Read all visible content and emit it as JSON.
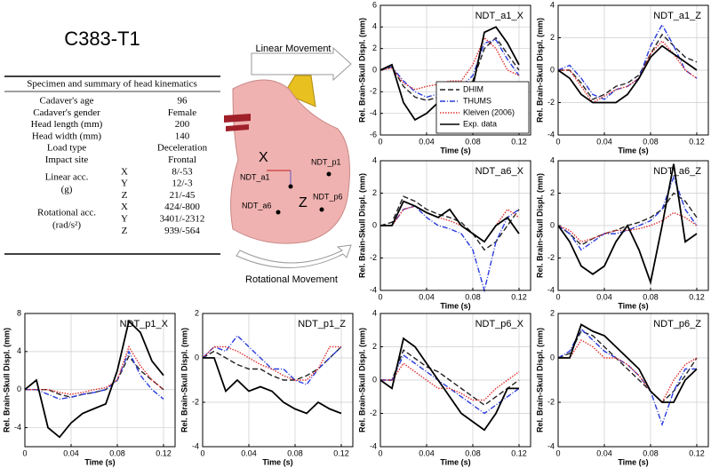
{
  "header": {
    "title": "C383-T1"
  },
  "table": {
    "title": "Specimen and summary of head kinematics",
    "rows": [
      {
        "label": "Cadaver's age",
        "value": "96"
      },
      {
        "label": "Cadaver's gender",
        "value": "Female"
      },
      {
        "label": "Head length (mm)",
        "value": "200"
      },
      {
        "label": "Head width (mm)",
        "value": "140"
      },
      {
        "label": "Load type",
        "value": "Deceleration"
      },
      {
        "label": "Impact site",
        "value": "Frontal"
      }
    ],
    "groups": [
      {
        "label": "Linear acc.",
        "unit": "(g)",
        "axes": [
          {
            "axis": "X",
            "value": "8/-53"
          },
          {
            "axis": "Y",
            "value": "12/-3"
          },
          {
            "axis": "Z",
            "value": "21/-45"
          }
        ]
      },
      {
        "label": "Rotational acc.",
        "unit": "(rad/s²)",
        "axes": [
          {
            "axis": "X",
            "value": "424/-800"
          },
          {
            "axis": "Y",
            "value": "3401/-2312"
          },
          {
            "axis": "Z",
            "value": "939/-564"
          }
        ]
      }
    ]
  },
  "diagram": {
    "linear": "Linear Movement",
    "rotational": "Rotational Movement",
    "axis_x": "X",
    "axis_z": "Z",
    "points": [
      "NDT_a1",
      "NDT_a6",
      "NDT_p1",
      "NDT_p6"
    ]
  },
  "chart_data": [
    {
      "type": "line",
      "title": "NDT_a1_X",
      "xlabel": "Time (s)",
      "ylabel": "Rel. Brain-Skull Displ. (mm)",
      "grid": true,
      "legend": "lower right",
      "x": [
        0,
        0.01,
        0.02,
        0.03,
        0.04,
        0.05,
        0.06,
        0.07,
        0.08,
        0.09,
        0.1,
        0.11,
        0.12
      ],
      "xlim": [
        0,
        0.13
      ],
      "xticks": [
        0,
        0.04,
        0.08,
        0.12
      ],
      "ylim": [
        -6,
        6
      ],
      "yticks": [
        -6,
        -4,
        -2,
        0,
        2,
        4,
        6
      ],
      "series": [
        {
          "name": "DHIM",
          "color": "#222222",
          "dash": "6,3",
          "values": [
            0,
            0.3,
            -1.5,
            -2.5,
            -2.8,
            -2.5,
            -2,
            -1.8,
            -1,
            2,
            3,
            1.5,
            0
          ]
        },
        {
          "name": "THUMS",
          "color": "#2a3cdd",
          "dash": "6,2,1,2",
          "values": [
            0,
            0.3,
            -1,
            -2,
            -2.5,
            -2.2,
            -1.8,
            -1.5,
            -0.5,
            2.5,
            2.8,
            1,
            -0.5
          ]
        },
        {
          "name": "Kleiven (2006)",
          "color": "#e03030",
          "dash": "1.5,1.5",
          "values": [
            0,
            0.2,
            -1.2,
            -1.8,
            -1.5,
            -1.3,
            -1,
            -1,
            0.5,
            3,
            2,
            0,
            -0.5
          ]
        },
        {
          "name": "Exp. data",
          "color": "#000000",
          "dash": "none",
          "values": [
            0,
            0.5,
            -3,
            -4.6,
            -4,
            -3,
            -2.5,
            -2.2,
            -1.5,
            3.5,
            4,
            2.5,
            0.5
          ]
        }
      ]
    },
    {
      "type": "line",
      "title": "NDT_a1_Z",
      "xlabel": "Time (s)",
      "ylabel": "Rel. Brain-Skull Displ. (mm)",
      "grid": true,
      "x": [
        0,
        0.01,
        0.02,
        0.03,
        0.04,
        0.05,
        0.06,
        0.07,
        0.08,
        0.09,
        0.1,
        0.11,
        0.12
      ],
      "xlim": [
        0,
        0.13
      ],
      "xticks": [
        0,
        0.04,
        0.08,
        0.12
      ],
      "ylim": [
        -4,
        4
      ],
      "yticks": [
        -4,
        -2,
        0,
        2,
        4
      ],
      "series": [
        {
          "color": "#222222",
          "dash": "6,3",
          "values": [
            0,
            0,
            -0.8,
            -1.8,
            -1.5,
            -1,
            -0.8,
            -0.3,
            1,
            2.2,
            1.5,
            0.8,
            0.5
          ]
        },
        {
          "color": "#2a3cdd",
          "dash": "6,2,1,2",
          "values": [
            0,
            0.3,
            -0.5,
            -1.5,
            -1.8,
            -1.2,
            -1,
            -0.5,
            1.5,
            2.8,
            1.5,
            0,
            -0.5
          ]
        },
        {
          "color": "#e03030",
          "dash": "1.5,1.5",
          "values": [
            0,
            0,
            -1,
            -2,
            -1.6,
            -1.2,
            -1,
            -0.5,
            1,
            1.8,
            1,
            0,
            -0.5
          ]
        },
        {
          "color": "#000000",
          "dash": "none",
          "values": [
            0,
            -0.5,
            -1.5,
            -2,
            -2,
            -2,
            -1.5,
            -0.5,
            0.8,
            1.5,
            1,
            0.5,
            0
          ]
        }
      ]
    },
    {
      "type": "line",
      "title": "NDT_a6_X",
      "xlabel": "Time (s)",
      "ylabel": "Rel. Brain-Skull Displ. (mm)",
      "grid": true,
      "x": [
        0,
        0.01,
        0.02,
        0.03,
        0.04,
        0.05,
        0.06,
        0.07,
        0.08,
        0.09,
        0.1,
        0.11,
        0.12
      ],
      "xlim": [
        0,
        0.13
      ],
      "xticks": [
        0,
        0.04,
        0.08,
        0.12
      ],
      "ylim": [
        -4,
        4
      ],
      "yticks": [
        -4,
        -2,
        0,
        2,
        4
      ],
      "series": [
        {
          "color": "#222222",
          "dash": "6,3",
          "values": [
            0,
            0.2,
            1.8,
            1.5,
            1,
            0.7,
            0.5,
            0.2,
            -0.5,
            -1.5,
            -1,
            0,
            1
          ]
        },
        {
          "color": "#2a3cdd",
          "dash": "6,2,1,2",
          "values": [
            0,
            0,
            1,
            1.2,
            0.5,
            0,
            -0.2,
            -0.5,
            -1.5,
            -4,
            -1,
            0.5,
            1
          ]
        },
        {
          "color": "#e03030",
          "dash": "1.5,1.5",
          "values": [
            0,
            0,
            1,
            1.2,
            0.8,
            0.5,
            0.3,
            0,
            -0.5,
            -1,
            0,
            1,
            0.5
          ]
        },
        {
          "color": "#000000",
          "dash": "none",
          "values": [
            0,
            0,
            1.5,
            1.2,
            0.8,
            0.5,
            1,
            0,
            -0.5,
            -1,
            0,
            0.5,
            -0.5
          ]
        }
      ]
    },
    {
      "type": "line",
      "title": "NDT_a6_Z",
      "xlabel": "Time (s)",
      "ylabel": "Rel. Brain-Skull Displ. (mm)",
      "grid": true,
      "x": [
        0,
        0.01,
        0.02,
        0.03,
        0.04,
        0.05,
        0.06,
        0.07,
        0.08,
        0.09,
        0.1,
        0.11,
        0.12
      ],
      "xlim": [
        0,
        0.13
      ],
      "xticks": [
        0,
        0.04,
        0.08,
        0.12
      ],
      "ylim": [
        -4,
        4
      ],
      "yticks": [
        -4,
        -2,
        0,
        2,
        4
      ],
      "series": [
        {
          "color": "#222222",
          "dash": "6,3",
          "values": [
            0,
            -0.5,
            -1.2,
            -0.8,
            -0.5,
            -0.3,
            0,
            0.2,
            0.5,
            1,
            2,
            1.5,
            0.5
          ]
        },
        {
          "color": "#2a3cdd",
          "dash": "6,2,1,2",
          "values": [
            0,
            -0.5,
            -1.5,
            -1,
            -0.5,
            -0.5,
            -0.3,
            0,
            0.3,
            1,
            3,
            1,
            0
          ]
        },
        {
          "color": "#e03030",
          "dash": "1.5,1.5",
          "values": [
            0,
            -0.3,
            -1,
            -0.8,
            -0.5,
            -0.3,
            -0.3,
            -0.2,
            0,
            0.3,
            0.8,
            0.5,
            0
          ]
        },
        {
          "color": "#000000",
          "dash": "none",
          "values": [
            0,
            -1,
            -2.5,
            -3,
            -2.5,
            -1,
            0,
            -1.5,
            -3.5,
            0,
            3.8,
            -1,
            -0.5
          ]
        }
      ]
    },
    {
      "type": "line",
      "title": "NDT_p1_X",
      "xlabel": "Time (s)",
      "ylabel": "Rel. Brain-Skull Displ. (mm)",
      "grid": true,
      "x": [
        0,
        0.01,
        0.02,
        0.03,
        0.04,
        0.05,
        0.06,
        0.07,
        0.08,
        0.09,
        0.1,
        0.11,
        0.12
      ],
      "xlim": [
        0,
        0.13
      ],
      "xticks": [
        0,
        0.04,
        0.08,
        0.12
      ],
      "ylim": [
        -6,
        8
      ],
      "yticks": [
        -4,
        0,
        4,
        8
      ],
      "series": [
        {
          "color": "#222222",
          "dash": "6,3",
          "values": [
            0,
            0,
            0,
            -0.5,
            -0.8,
            -0.5,
            -0.3,
            0,
            1,
            3.5,
            2,
            1,
            0
          ]
        },
        {
          "color": "#2a3cdd",
          "dash": "6,2,1,2",
          "values": [
            0,
            0,
            -0.5,
            -1,
            -0.8,
            -0.5,
            -0.3,
            0,
            1,
            4,
            1.5,
            0,
            -1
          ]
        },
        {
          "color": "#e03030",
          "dash": "1.5,1.5",
          "values": [
            0,
            0,
            0,
            -0.3,
            -0.5,
            -0.3,
            0,
            0.2,
            1,
            4.5,
            2.5,
            1,
            0
          ]
        },
        {
          "color": "#000000",
          "dash": "none",
          "values": [
            0,
            1,
            -4,
            -5,
            -3.5,
            -2.5,
            -2,
            -1.5,
            2,
            7.2,
            6,
            3,
            1.5
          ]
        }
      ]
    },
    {
      "type": "line",
      "title": "NDT_p1_Z",
      "xlabel": "Time (s)",
      "ylabel": "Rel. Brain-Skull Displ. (mm)",
      "grid": true,
      "x": [
        0,
        0.01,
        0.02,
        0.03,
        0.04,
        0.05,
        0.06,
        0.07,
        0.08,
        0.09,
        0.1,
        0.11,
        0.12
      ],
      "xlim": [
        0,
        0.13
      ],
      "xticks": [
        0,
        0.04,
        0.08,
        0.12
      ],
      "ylim": [
        -4,
        2
      ],
      "yticks": [
        -4,
        -2,
        0,
        2
      ],
      "series": [
        {
          "color": "#222222",
          "dash": "6,3",
          "values": [
            0,
            0.3,
            0,
            -0.3,
            -0.5,
            -0.5,
            -0.8,
            -1,
            -1,
            -0.8,
            -0.5,
            0,
            0.5
          ]
        },
        {
          "color": "#2a3cdd",
          "dash": "6,2,1,2",
          "values": [
            0,
            0.5,
            0.3,
            1,
            0.5,
            0,
            -0.5,
            -0.5,
            -1,
            -1.2,
            -0.5,
            0,
            0.5
          ]
        },
        {
          "color": "#e03030",
          "dash": "1.5,1.5",
          "values": [
            0,
            0.5,
            0.5,
            0.3,
            0,
            -0.3,
            -0.5,
            -0.8,
            -1,
            -1,
            -0.5,
            0.5,
            0.5
          ]
        },
        {
          "color": "#000000",
          "dash": "none",
          "values": [
            0,
            0,
            -1.5,
            -1,
            -1.5,
            -1.3,
            -1.5,
            -2,
            -2.3,
            -2.5,
            -2,
            -2.3,
            -2.5
          ]
        }
      ]
    },
    {
      "type": "line",
      "title": "NDT_p6_X",
      "xlabel": "Time (s)",
      "ylabel": "Rel. Brain-Skull Displ. (mm)",
      "grid": true,
      "x": [
        0,
        0.01,
        0.02,
        0.03,
        0.04,
        0.05,
        0.06,
        0.07,
        0.08,
        0.09,
        0.1,
        0.11,
        0.12
      ],
      "xlim": [
        0,
        0.13
      ],
      "xticks": [
        0,
        0.04,
        0.08,
        0.12
      ],
      "ylim": [
        -4,
        4
      ],
      "yticks": [
        -4,
        -2,
        0,
        2,
        4
      ],
      "series": [
        {
          "color": "#222222",
          "dash": "6,3",
          "values": [
            0,
            0,
            1.8,
            1.3,
            0.8,
            0.5,
            0,
            -0.5,
            -1,
            -1.5,
            -1,
            -0.5,
            0
          ]
        },
        {
          "color": "#2a3cdd",
          "dash": "6,2,1,2",
          "values": [
            0,
            0,
            1.5,
            1,
            0.5,
            0,
            -0.5,
            -1,
            -1.5,
            -2,
            -1.5,
            -1,
            -0.5
          ]
        },
        {
          "color": "#e03030",
          "dash": "1.5,1.5",
          "values": [
            0,
            0,
            1,
            0.5,
            0,
            -0.5,
            -0.5,
            -0.8,
            -1.2,
            -1.2,
            -0.5,
            0,
            0.5
          ]
        },
        {
          "color": "#000000",
          "dash": "none",
          "values": [
            0,
            -0.5,
            2.5,
            2,
            1,
            0,
            -1,
            -2,
            -2.5,
            -3,
            -2,
            -0.5,
            -0.5
          ]
        }
      ]
    },
    {
      "type": "line",
      "title": "NDT_p6_Z",
      "xlabel": "Time (s)",
      "ylabel": "Rel. Brain-Skull Displ. (mm)",
      "grid": true,
      "x": [
        0,
        0.01,
        0.02,
        0.03,
        0.04,
        0.05,
        0.06,
        0.07,
        0.08,
        0.09,
        0.1,
        0.11,
        0.12
      ],
      "xlim": [
        0,
        0.13
      ],
      "xticks": [
        0,
        0.04,
        0.08,
        0.12
      ],
      "ylim": [
        -4,
        2
      ],
      "yticks": [
        -4,
        -2,
        0,
        2
      ],
      "series": [
        {
          "color": "#222222",
          "dash": "6,3",
          "values": [
            0,
            0.2,
            1.2,
            1,
            0.5,
            0,
            -0.5,
            -1,
            -1.5,
            -2,
            -1.5,
            -0.8,
            0
          ]
        },
        {
          "color": "#2a3cdd",
          "dash": "6,2,1,2",
          "values": [
            0,
            0.3,
            1.3,
            0.8,
            0.3,
            0,
            -0.3,
            -0.8,
            -1.5,
            -3,
            -1.5,
            -0.5,
            -0.5
          ]
        },
        {
          "color": "#e03030",
          "dash": "1.5,1.5",
          "values": [
            0,
            0,
            0.8,
            0.5,
            0,
            0,
            -0.3,
            -0.8,
            -1.5,
            -2,
            -1,
            -0.3,
            0
          ]
        },
        {
          "color": "#000000",
          "dash": "none",
          "values": [
            0,
            0,
            1.5,
            1.2,
            1,
            0.5,
            0,
            -0.5,
            -1.5,
            -2,
            -2,
            -1,
            -0.5
          ]
        }
      ]
    }
  ]
}
